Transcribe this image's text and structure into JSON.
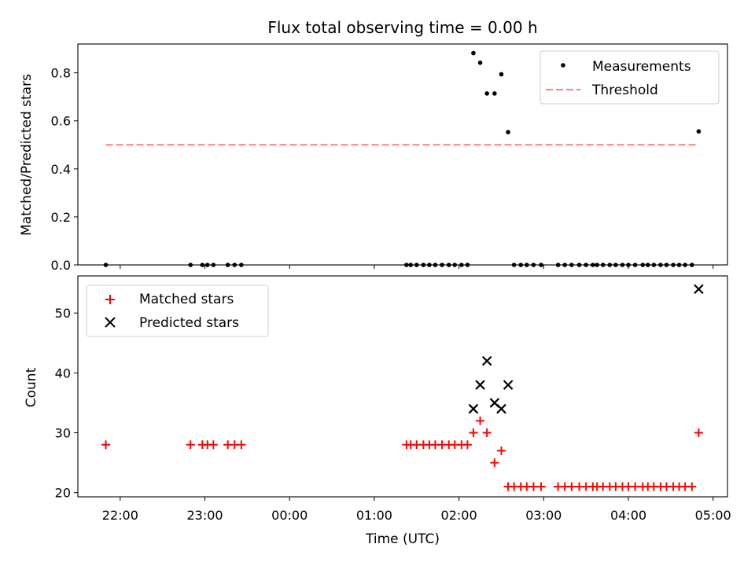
{
  "chart_data": [
    {
      "type": "scatter",
      "title": "Flux total observing time = 0.00 h",
      "xlabel": "",
      "ylabel": "Matched/Predicted stars",
      "ylim": [
        0,
        0.92
      ],
      "yticks": [
        0.0,
        0.2,
        0.4,
        0.6,
        0.8
      ],
      "ytick_labels": [
        "0.0",
        "0.2",
        "0.4",
        "0.6",
        "0.8"
      ],
      "legend_position": "top-right",
      "legend": {
        "measurements": "Measurements",
        "threshold": "Threshold"
      },
      "colors": {
        "measurements": "#000000",
        "threshold": "#ff7f7f"
      },
      "threshold": {
        "value": 0.5,
        "x_start": 21.83,
        "x_end": 28.83
      },
      "measurements": {
        "x": [
          21.83,
          22.83,
          22.97,
          23.03,
          23.1,
          23.27,
          23.35,
          23.43,
          25.38,
          25.43,
          25.5,
          25.58,
          25.65,
          25.72,
          25.8,
          25.88,
          25.95,
          26.03,
          26.1,
          26.17,
          26.25,
          26.33,
          26.42,
          26.5,
          26.58,
          26.65,
          26.73,
          26.8,
          26.88,
          26.97,
          27.17,
          27.25,
          27.33,
          27.42,
          27.5,
          27.58,
          27.63,
          27.7,
          27.78,
          27.85,
          27.93,
          28.0,
          28.08,
          28.17,
          28.23,
          28.3,
          28.38,
          28.45,
          28.53,
          28.6,
          28.67,
          28.75,
          28.83
        ],
        "y": [
          0,
          0,
          0,
          0,
          0,
          0,
          0,
          0,
          0,
          0,
          0,
          0,
          0,
          0,
          0,
          0,
          0,
          0,
          0,
          0.882,
          0.842,
          0.714,
          0.714,
          0.794,
          0.553,
          0,
          0,
          0,
          0,
          0,
          0,
          0,
          0,
          0,
          0,
          0,
          0,
          0,
          0,
          0,
          0,
          0,
          0,
          0,
          0,
          0,
          0,
          0,
          0,
          0,
          0,
          0,
          0.556
        ]
      }
    },
    {
      "type": "scatter",
      "title": "",
      "xlabel": "Time (UTC)",
      "ylabel": "Count",
      "ylim": [
        19.3,
        56.2
      ],
      "yticks": [
        20,
        30,
        40,
        50
      ],
      "ytick_labels": [
        "20",
        "30",
        "40",
        "50"
      ],
      "xlim": [
        21.5,
        29.17
      ],
      "xticks": [
        22,
        23,
        24,
        25,
        26,
        27,
        28,
        29
      ],
      "xtick_labels": [
        "22:00",
        "23:00",
        "00:00",
        "01:00",
        "02:00",
        "03:00",
        "04:00",
        "05:00"
      ],
      "legend_position": "top-left",
      "legend": {
        "matched": "Matched stars",
        "predicted": "Predicted stars"
      },
      "colors": {
        "matched": "#ff0000",
        "predicted": "#000000"
      },
      "matched": {
        "x": [
          21.83,
          22.83,
          22.97,
          23.03,
          23.1,
          23.27,
          23.35,
          23.43,
          25.38,
          25.43,
          25.5,
          25.58,
          25.65,
          25.72,
          25.8,
          25.88,
          25.95,
          26.03,
          26.1,
          26.17,
          26.25,
          26.33,
          26.42,
          26.5,
          26.58,
          26.65,
          26.73,
          26.8,
          26.88,
          26.97,
          27.17,
          27.25,
          27.33,
          27.42,
          27.5,
          27.58,
          27.63,
          27.7,
          27.78,
          27.85,
          27.93,
          28.0,
          28.08,
          28.17,
          28.23,
          28.3,
          28.38,
          28.45,
          28.53,
          28.6,
          28.67,
          28.75,
          28.83
        ],
        "y": [
          28,
          28,
          28,
          28,
          28,
          28,
          28,
          28,
          28,
          28,
          28,
          28,
          28,
          28,
          28,
          28,
          28,
          28,
          28,
          30,
          32,
          30,
          25,
          27,
          21,
          21,
          21,
          21,
          21,
          21,
          21,
          21,
          21,
          21,
          21,
          21,
          21,
          21,
          21,
          21,
          21,
          21,
          21,
          21,
          21,
          21,
          21,
          21,
          21,
          21,
          21,
          21,
          30
        ]
      },
      "predicted": {
        "x": [
          26.17,
          26.25,
          26.33,
          26.42,
          26.5,
          26.58,
          28.83
        ],
        "y": [
          34,
          38,
          42,
          35,
          34,
          38,
          54
        ]
      }
    }
  ]
}
